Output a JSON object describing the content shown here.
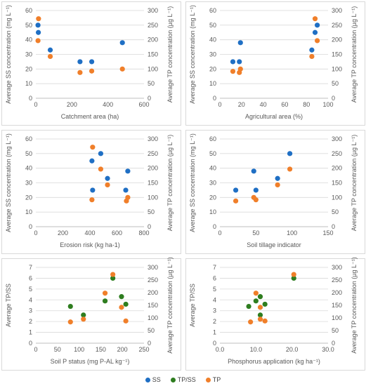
{
  "colors": {
    "SS": "#1f6fc4",
    "TP_SS": "#2e7d1f",
    "TP": "#f07f2a",
    "grid": "#d9d9d9",
    "axis": "#bfbfbf",
    "text": "#595959"
  },
  "legend": [
    {
      "key": "SS",
      "label": "SS"
    },
    {
      "key": "TP_SS",
      "label": "TP/SS"
    },
    {
      "key": "TP",
      "label": "TP"
    }
  ],
  "chart_data": [
    {
      "type": "scatter",
      "xlabel": "Catchment area (ha)",
      "ylabel_left": "Average SS concentration (mg L⁻¹)",
      "ylabel_right": "Average TP concentration (µg L⁻¹)",
      "xlim": [
        0,
        600
      ],
      "xticks": [
        "0",
        "200",
        "400",
        "600"
      ],
      "xtick_values": [
        0,
        200,
        400,
        600
      ],
      "ylim_left": [
        0,
        60
      ],
      "yticks_left": [
        "0",
        "10",
        "20",
        "30",
        "40",
        "50",
        "60"
      ],
      "ytick_values_left": [
        0,
        10,
        20,
        30,
        40,
        50,
        60
      ],
      "ylim_right": [
        0,
        300
      ],
      "yticks_right": [
        "0",
        "50",
        "100",
        "150",
        "200",
        "250",
        "300"
      ],
      "ytick_values_right": [
        0,
        50,
        100,
        150,
        200,
        250,
        300
      ],
      "series": [
        {
          "name": "SS",
          "axis": "left",
          "points": [
            [
              12,
              50
            ],
            [
              14,
              45
            ],
            [
              80,
              33
            ],
            [
              245,
              25
            ],
            [
              310,
              25
            ],
            [
              480,
              38
            ]
          ]
        },
        {
          "name": "TP",
          "axis": "right",
          "points": [
            [
              15,
              272
            ],
            [
              12,
              197
            ],
            [
              80,
              143
            ],
            [
              245,
              88
            ],
            [
              310,
              93
            ],
            [
              480,
              100
            ]
          ]
        }
      ]
    },
    {
      "type": "scatter",
      "xlabel": "Agricultural area (%)",
      "ylabel_left": "Average SS concentration (mg L⁻¹)",
      "ylabel_right": "Average TP concentration (µg L⁻¹)",
      "xlim": [
        0,
        100
      ],
      "xticks": [
        "0",
        "20",
        "40",
        "60",
        "80",
        "100"
      ],
      "xtick_values": [
        0,
        20,
        40,
        60,
        80,
        100
      ],
      "ylim_left": [
        0,
        60
      ],
      "yticks_left": [
        "0",
        "10",
        "20",
        "30",
        "40",
        "50",
        "60"
      ],
      "ytick_values_left": [
        0,
        10,
        20,
        30,
        40,
        50,
        60
      ],
      "ylim_right": [
        0,
        300
      ],
      "yticks_right": [
        "0",
        "50",
        "100",
        "150",
        "200",
        "250",
        "300"
      ],
      "ytick_values_right": [
        0,
        50,
        100,
        150,
        200,
        250,
        300
      ],
      "series": [
        {
          "name": "SS",
          "axis": "left",
          "points": [
            [
              12,
              25
            ],
            [
              18,
              25
            ],
            [
              19,
              38
            ],
            [
              85,
              33
            ],
            [
              88,
              45
            ],
            [
              90,
              50
            ]
          ]
        },
        {
          "name": "TP",
          "axis": "right",
          "points": [
            [
              12,
              92
            ],
            [
              18,
              88
            ],
            [
              19,
              100
            ],
            [
              85,
              143
            ],
            [
              88,
              272
            ],
            [
              90,
              197
            ]
          ]
        }
      ]
    },
    {
      "type": "scatter",
      "xlabel": "Erosion risk (kg ha-1)",
      "ylabel_left": "Average SS concentration (mg L⁻¹)",
      "ylabel_right": "Average TP concentration (µg L⁻¹)",
      "xlim": [
        0,
        800
      ],
      "xticks": [
        "0",
        "200",
        "400",
        "600",
        "800"
      ],
      "xtick_values": [
        0,
        200,
        400,
        600,
        800
      ],
      "ylim_left": [
        0,
        60
      ],
      "yticks_left": [
        "0",
        "10",
        "20",
        "30",
        "40",
        "50",
        "60"
      ],
      "ytick_values_left": [
        0,
        10,
        20,
        30,
        40,
        50,
        60
      ],
      "ylim_right": [
        0,
        300
      ],
      "yticks_right": [
        "0",
        "50",
        "100",
        "150",
        "200",
        "250",
        "300"
      ],
      "ytick_values_right": [
        0,
        50,
        100,
        150,
        200,
        250,
        300
      ],
      "series": [
        {
          "name": "SS",
          "axis": "left",
          "points": [
            [
              415,
              45
            ],
            [
              420,
              25
            ],
            [
              480,
              50
            ],
            [
              530,
              33
            ],
            [
              665,
              25
            ],
            [
              680,
              38
            ]
          ]
        },
        {
          "name": "TP",
          "axis": "right",
          "points": [
            [
              420,
              272
            ],
            [
              415,
              92
            ],
            [
              480,
              197
            ],
            [
              530,
              143
            ],
            [
              670,
              88
            ],
            [
              680,
              100
            ]
          ]
        }
      ]
    },
    {
      "type": "scatter",
      "xlabel": "Soil tillage indicator",
      "ylabel_left": "Average SS concentration (mg L⁻¹)",
      "ylabel_right": "Average TP concentration (µg L⁻¹)",
      "xlim": [
        0,
        150
      ],
      "xticks": [
        "0",
        "50",
        "100",
        "150"
      ],
      "xtick_values": [
        0,
        50,
        100,
        150
      ],
      "ylim_left": [
        0,
        60
      ],
      "yticks_left": [
        "0",
        "10",
        "20",
        "30",
        "40",
        "50",
        "60"
      ],
      "ytick_values_left": [
        0,
        10,
        20,
        30,
        40,
        50,
        60
      ],
      "ylim_right": [
        0,
        300
      ],
      "yticks_right": [
        "0",
        "50",
        "100",
        "150",
        "200",
        "250",
        "300"
      ],
      "ytick_values_right": [
        0,
        50,
        100,
        150,
        200,
        250,
        300
      ],
      "series": [
        {
          "name": "SS",
          "axis": "left",
          "points": [
            [
              22,
              25
            ],
            [
              47,
              38
            ],
            [
              50,
              25
            ],
            [
              80,
              33
            ],
            [
              97,
              50
            ]
          ]
        },
        {
          "name": "TP",
          "axis": "right",
          "points": [
            [
              22,
              88
            ],
            [
              47,
              100
            ],
            [
              50,
              92
            ],
            [
              80,
              143
            ],
            [
              97,
              197
            ]
          ]
        }
      ]
    },
    {
      "type": "scatter",
      "xlabel": "Soil P status (mg P-AL kg⁻¹)",
      "ylabel_left": "Average TP/SS",
      "ylabel_right": "Average TP concentration (µg L⁻¹)",
      "xlim": [
        0,
        250
      ],
      "xticks": [
        "0",
        "50",
        "100",
        "150",
        "200",
        "250"
      ],
      "xtick_values": [
        0,
        50,
        100,
        150,
        200,
        250
      ],
      "ylim_left": [
        0,
        7
      ],
      "yticks_left": [
        "0",
        "1",
        "2",
        "3",
        "4",
        "5",
        "6",
        "7"
      ],
      "ytick_values_left": [
        0,
        1,
        2,
        3,
        4,
        5,
        6,
        7
      ],
      "ylim_right": [
        0,
        300
      ],
      "yticks_right": [
        "0",
        "50",
        "100",
        "150",
        "200",
        "250",
        "300"
      ],
      "ytick_values_right": [
        0,
        50,
        100,
        150,
        200,
        250,
        300
      ],
      "series": [
        {
          "name": "TP/SS",
          "axis": "left",
          "points": [
            [
              80,
              3.4
            ],
            [
              110,
              2.6
            ],
            [
              160,
              3.9
            ],
            [
              178,
              6.0
            ],
            [
              198,
              4.3
            ],
            [
              208,
              3.6
            ]
          ]
        },
        {
          "name": "TP",
          "axis": "right",
          "points": [
            [
              80,
              84
            ],
            [
              110,
              95
            ],
            [
              160,
              198
            ],
            [
              178,
              272
            ],
            [
              198,
              142
            ],
            [
              208,
              88
            ]
          ]
        }
      ]
    },
    {
      "type": "scatter",
      "xlabel": "Phosphorus application (kg ha⁻¹)",
      "ylabel_left": "Average TP/SS",
      "ylabel_right": "Average TP concentration (µg L⁻¹)",
      "xlim": [
        0,
        30
      ],
      "xticks": [
        "0.0",
        "10.0",
        "20.0",
        "30.0"
      ],
      "xtick_values": [
        0,
        10,
        20,
        30
      ],
      "ylim_left": [
        0,
        7
      ],
      "yticks_left": [
        "0",
        "1",
        "2",
        "3",
        "4",
        "5",
        "6",
        "7"
      ],
      "ytick_values_left": [
        0,
        1,
        2,
        3,
        4,
        5,
        6,
        7
      ],
      "ylim_right": [
        0,
        300
      ],
      "yticks_right": [
        "0",
        "50",
        "100",
        "150",
        "200",
        "250",
        "300"
      ],
      "ytick_values_right": [
        0,
        50,
        100,
        150,
        200,
        250,
        300
      ],
      "series": [
        {
          "name": "TP/SS",
          "axis": "left",
          "points": [
            [
              8.0,
              3.4
            ],
            [
              10.0,
              3.9
            ],
            [
              11.2,
              4.3
            ],
            [
              11.2,
              2.6
            ],
            [
              12.5,
              3.6
            ],
            [
              20.5,
              6.0
            ]
          ]
        },
        {
          "name": "TP",
          "axis": "right",
          "points": [
            [
              8.5,
              84
            ],
            [
              10.0,
              198
            ],
            [
              11.2,
              142
            ],
            [
              11.2,
              95
            ],
            [
              12.5,
              88
            ],
            [
              20.5,
              272
            ]
          ]
        }
      ]
    }
  ]
}
